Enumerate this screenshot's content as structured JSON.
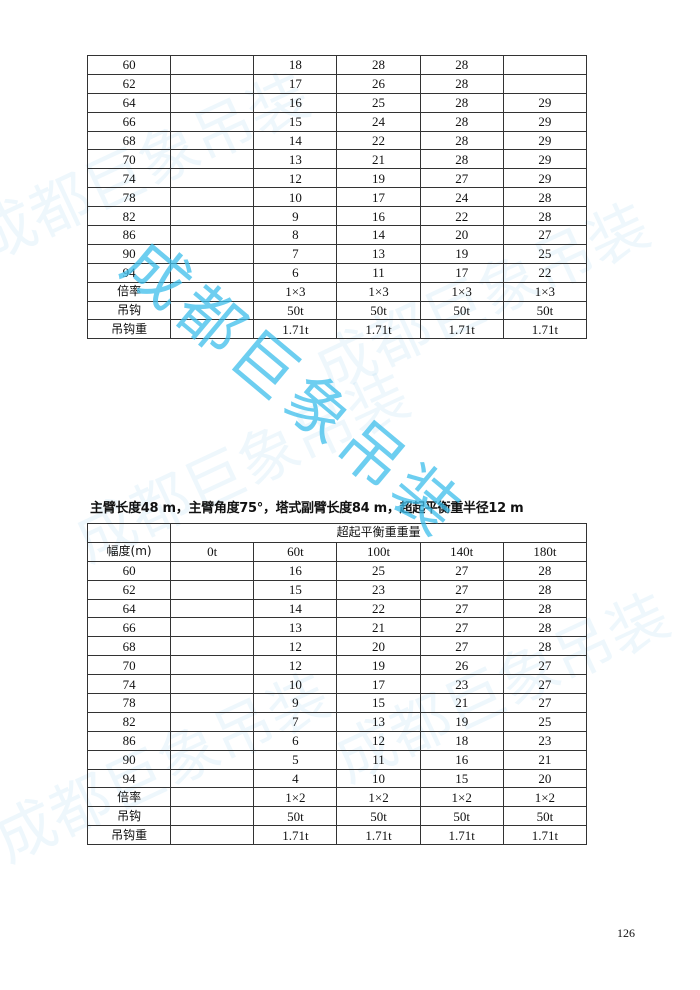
{
  "watermark": "成都巨象吊装",
  "table1": {
    "rows": [
      [
        "60",
        "",
        "18",
        "28",
        "28",
        ""
      ],
      [
        "62",
        "",
        "17",
        "26",
        "28",
        ""
      ],
      [
        "64",
        "",
        "16",
        "25",
        "28",
        "29"
      ],
      [
        "66",
        "",
        "15",
        "24",
        "28",
        "29"
      ],
      [
        "68",
        "",
        "14",
        "22",
        "28",
        "29"
      ],
      [
        "70",
        "",
        "13",
        "21",
        "28",
        "29"
      ],
      [
        "74",
        "",
        "12",
        "19",
        "27",
        "29"
      ],
      [
        "78",
        "",
        "10",
        "17",
        "24",
        "28"
      ],
      [
        "82",
        "",
        "9",
        "16",
        "22",
        "28"
      ],
      [
        "86",
        "",
        "8",
        "14",
        "20",
        "27"
      ],
      [
        "90",
        "",
        "7",
        "13",
        "19",
        "25"
      ],
      [
        "94",
        "",
        "6",
        "11",
        "17",
        "22"
      ],
      [
        "倍率",
        "",
        "1×3",
        "1×3",
        "1×3",
        "1×3"
      ],
      [
        "吊钩",
        "",
        "50t",
        "50t",
        "50t",
        "50t"
      ],
      [
        "吊钩重",
        "",
        "1.71t",
        "1.71t",
        "1.71t",
        "1.71t"
      ]
    ]
  },
  "section2": {
    "title": "主臂长度48 m，主臂角度75°，塔式副臂长度84 m，超起平衡重半径12 m",
    "group_header": "超起平衡重重量",
    "columns": [
      "幅度(m)",
      "0t",
      "60t",
      "100t",
      "140t",
      "180t"
    ],
    "rows": [
      [
        "60",
        "",
        "16",
        "25",
        "27",
        "28"
      ],
      [
        "62",
        "",
        "15",
        "23",
        "27",
        "28"
      ],
      [
        "64",
        "",
        "14",
        "22",
        "27",
        "28"
      ],
      [
        "66",
        "",
        "13",
        "21",
        "27",
        "28"
      ],
      [
        "68",
        "",
        "12",
        "20",
        "27",
        "28"
      ],
      [
        "70",
        "",
        "12",
        "19",
        "26",
        "27"
      ],
      [
        "74",
        "",
        "10",
        "17",
        "23",
        "27"
      ],
      [
        "78",
        "",
        "9",
        "15",
        "21",
        "27"
      ],
      [
        "82",
        "",
        "7",
        "13",
        "19",
        "25"
      ],
      [
        "86",
        "",
        "6",
        "12",
        "18",
        "23"
      ],
      [
        "90",
        "",
        "5",
        "11",
        "16",
        "21"
      ],
      [
        "94",
        "",
        "4",
        "10",
        "15",
        "20"
      ],
      [
        "倍率",
        "",
        "1×2",
        "1×2",
        "1×2",
        "1×2"
      ],
      [
        "吊钩",
        "",
        "50t",
        "50t",
        "50t",
        "50t"
      ],
      [
        "吊钩重",
        "",
        "1.71t",
        "1.71t",
        "1.71t",
        "1.71t"
      ]
    ]
  },
  "page_number": "126"
}
